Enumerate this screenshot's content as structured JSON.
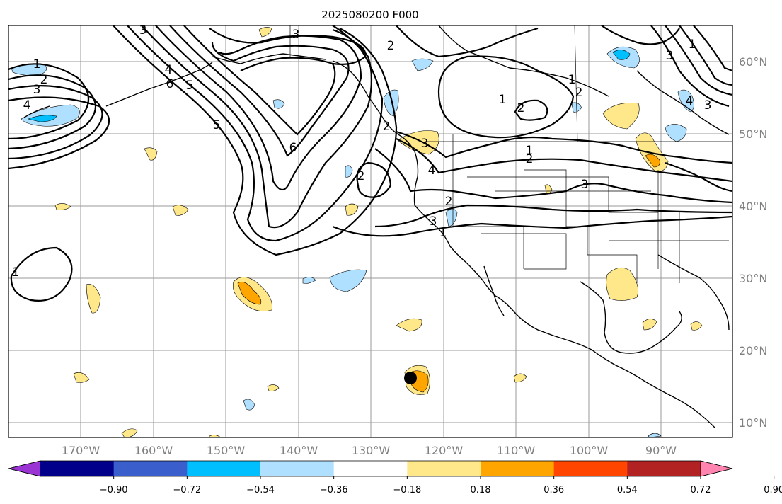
{
  "title": "2025080200 F000",
  "lon_labels": [
    "170°W",
    "160°W",
    "150°W",
    "140°W",
    "130°W",
    "120°W",
    "110°W",
    "100°W",
    "90°W"
  ],
  "lat_labels": [
    "60°N",
    "50°N",
    "40°N",
    "30°N",
    "20°N",
    "10°N"
  ],
  "colorbar": {
    "ticks": [
      "−0.90",
      "−0.72",
      "−0.54",
      "−0.36",
      "−0.18",
      "0.18",
      "0.36",
      "0.54",
      "0.72",
      "0.90"
    ],
    "colors": [
      "#9a35d4",
      "#00008b",
      "#3a5fcd",
      "#00bfff",
      "#b0e0ff",
      "#ffffff",
      "#ffe88a",
      "#ffa500",
      "#ff4500",
      "#b22222",
      "#ff85b0"
    ]
  },
  "contour_labels": [
    "1",
    "2",
    "3",
    "4",
    "3",
    "2",
    "1",
    "1",
    "2",
    "3",
    "4",
    "5",
    "6",
    "3",
    "2",
    "2",
    "1",
    "2",
    "1",
    "2",
    "3",
    "1",
    "2",
    "3",
    "4",
    "3",
    "1",
    "3",
    "4",
    "5",
    "6"
  ],
  "storm_marker": "tropical cyclone center"
}
